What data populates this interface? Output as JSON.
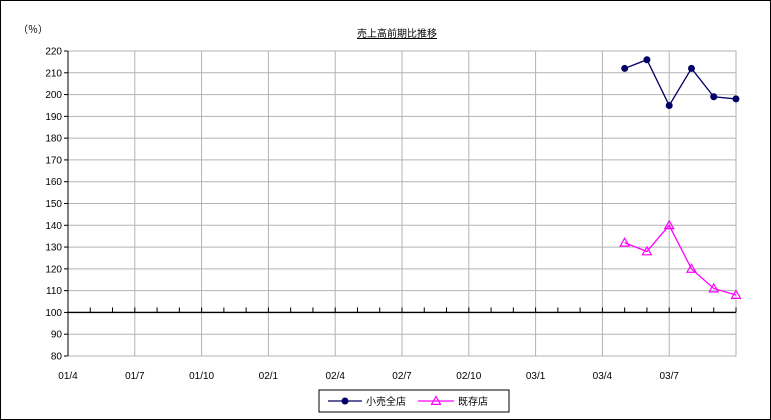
{
  "chart_data": {
    "type": "line",
    "title": "売上高前期比推移",
    "ylabel": "（％）",
    "xlabel": "",
    "ylim": [
      80,
      220
    ],
    "ytick_step": 10,
    "baseline": 100,
    "grid": true,
    "legend_position": "bottom",
    "x_tick_labels": [
      "01/4",
      "01/7",
      "01/10",
      "02/1",
      "02/4",
      "02/7",
      "02/10",
      "03/1",
      "03/4",
      "03/7"
    ],
    "x_months": [
      "01/4",
      "01/5",
      "01/6",
      "01/7",
      "01/8",
      "01/9",
      "01/10",
      "01/11",
      "01/12",
      "02/1",
      "02/2",
      "02/3",
      "02/4",
      "02/5",
      "02/6",
      "02/7",
      "02/8",
      "02/9",
      "02/10",
      "02/11",
      "02/12",
      "03/1",
      "03/2",
      "03/3",
      "03/4",
      "03/5",
      "03/6",
      "03/7",
      "03/8",
      "03/9"
    ],
    "series": [
      {
        "name": "小売全店",
        "color": "#000066",
        "marker": "circle",
        "x": [
          "03/4",
          "03/5",
          "03/6",
          "03/7",
          "03/8",
          "03/9"
        ],
        "values": [
          212,
          216,
          195,
          212,
          199,
          198
        ]
      },
      {
        "name": "既存店",
        "color": "#ff00ff",
        "marker": "triangle",
        "x": [
          "03/4",
          "03/5",
          "03/6",
          "03/7",
          "03/8",
          "03/9"
        ],
        "values": [
          132,
          128,
          140,
          120,
          111,
          108
        ]
      }
    ]
  }
}
